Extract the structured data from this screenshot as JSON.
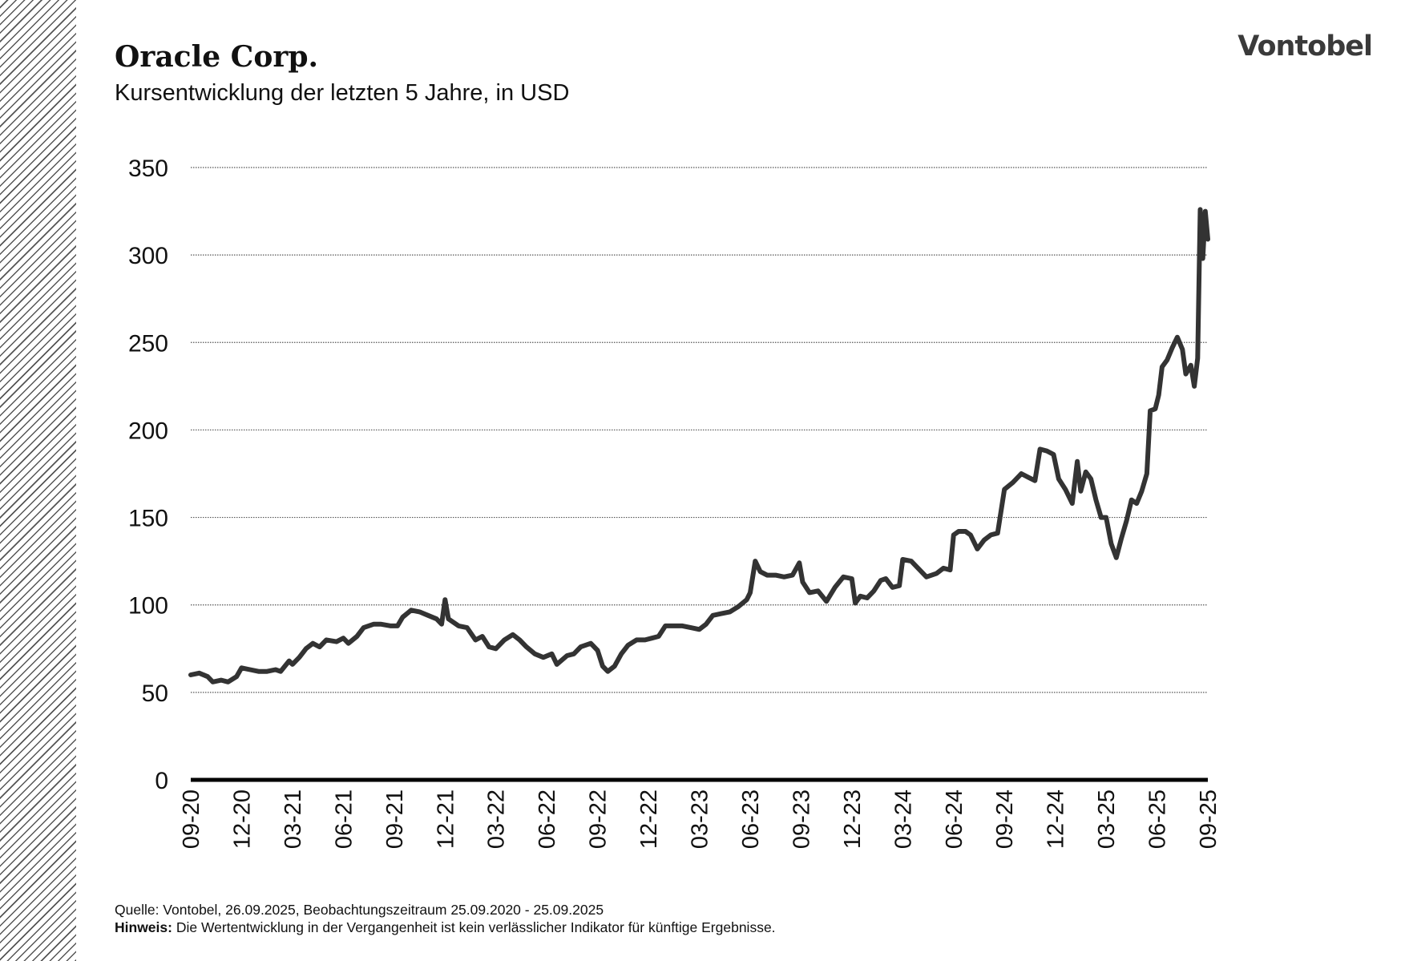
{
  "brand": "Vontobel",
  "title": "Oracle Corp.",
  "subtitle": "Kursentwicklung der letzten 5 Jahre, in USD",
  "source": "Quelle: Vontobel, 26.09.2025, Beobachtungszeitraum 25.09.2020 - 25.09.2025",
  "note_label": "Hinweis:",
  "note_text": "Die Wertentwicklung in der Vergangenheit ist kein verlässlicher Indikator für künftige Ergebnisse.",
  "colors": {
    "line": "#333333",
    "grid": "#555555",
    "axis": "#000000"
  },
  "chart_data": {
    "type": "line",
    "title": "Oracle Corp.",
    "ylabel": "USD",
    "xlabel": "",
    "ylim": [
      0,
      350
    ],
    "yticks": [
      0,
      50,
      100,
      150,
      200,
      250,
      300,
      350
    ],
    "grid": true,
    "xlim": [
      0,
      60
    ],
    "xticks": [
      {
        "x": 0,
        "label": "09-20"
      },
      {
        "x": 3,
        "label": "12-20"
      },
      {
        "x": 6,
        "label": "03-21"
      },
      {
        "x": 9,
        "label": "06-21"
      },
      {
        "x": 12,
        "label": "09-21"
      },
      {
        "x": 15,
        "label": "12-21"
      },
      {
        "x": 18,
        "label": "03-22"
      },
      {
        "x": 21,
        "label": "06-22"
      },
      {
        "x": 24,
        "label": "09-22"
      },
      {
        "x": 27,
        "label": "12-22"
      },
      {
        "x": 30,
        "label": "03-23"
      },
      {
        "x": 33,
        "label": "06-23"
      },
      {
        "x": 36,
        "label": "09-23"
      },
      {
        "x": 39,
        "label": "12-23"
      },
      {
        "x": 42,
        "label": "03-24"
      },
      {
        "x": 45,
        "label": "06-24"
      },
      {
        "x": 48,
        "label": "09-24"
      },
      {
        "x": 51,
        "label": "12-24"
      },
      {
        "x": 54,
        "label": "03-25"
      },
      {
        "x": 57,
        "label": "06-25"
      },
      {
        "x": 60,
        "label": "09-25"
      }
    ],
    "series": [
      {
        "name": "Oracle Corp.",
        "x_unit": "months since 25.09.2020",
        "points": [
          [
            0,
            60
          ],
          [
            0.5,
            61
          ],
          [
            1,
            59
          ],
          [
            1.3,
            56
          ],
          [
            1.8,
            57
          ],
          [
            2.2,
            56
          ],
          [
            2.7,
            59
          ],
          [
            3,
            64
          ],
          [
            3.5,
            63
          ],
          [
            4,
            62
          ],
          [
            4.5,
            62
          ],
          [
            5,
            63
          ],
          [
            5.3,
            62
          ],
          [
            5.8,
            68
          ],
          [
            6,
            66
          ],
          [
            6.4,
            70
          ],
          [
            6.8,
            75
          ],
          [
            7.2,
            78
          ],
          [
            7.6,
            76
          ],
          [
            8,
            80
          ],
          [
            8.6,
            79
          ],
          [
            9,
            81
          ],
          [
            9.3,
            78
          ],
          [
            9.8,
            82
          ],
          [
            10.2,
            87
          ],
          [
            10.8,
            89
          ],
          [
            11.2,
            89
          ],
          [
            11.8,
            88
          ],
          [
            12.2,
            88
          ],
          [
            12.5,
            93
          ],
          [
            13,
            97
          ],
          [
            13.5,
            96
          ],
          [
            14,
            94
          ],
          [
            14.5,
            92
          ],
          [
            14.8,
            89
          ],
          [
            15,
            103
          ],
          [
            15.2,
            92
          ],
          [
            15.8,
            88
          ],
          [
            16.3,
            87
          ],
          [
            16.8,
            80
          ],
          [
            17.2,
            82
          ],
          [
            17.6,
            76
          ],
          [
            18,
            75
          ],
          [
            18.5,
            80
          ],
          [
            19,
            83
          ],
          [
            19.4,
            80
          ],
          [
            19.8,
            76
          ],
          [
            20.3,
            72
          ],
          [
            20.8,
            70
          ],
          [
            21.3,
            72
          ],
          [
            21.6,
            66
          ],
          [
            22.2,
            71
          ],
          [
            22.6,
            72
          ],
          [
            23,
            76
          ],
          [
            23.6,
            78
          ],
          [
            24,
            74
          ],
          [
            24.3,
            65
          ],
          [
            24.6,
            62
          ],
          [
            25,
            65
          ],
          [
            25.4,
            72
          ],
          [
            25.8,
            77
          ],
          [
            26.3,
            80
          ],
          [
            26.8,
            80
          ],
          [
            27.2,
            81
          ],
          [
            27.6,
            82
          ],
          [
            28,
            88
          ],
          [
            28.5,
            88
          ],
          [
            29,
            88
          ],
          [
            29.5,
            87
          ],
          [
            30,
            86
          ],
          [
            30.4,
            89
          ],
          [
            30.8,
            94
          ],
          [
            31.3,
            95
          ],
          [
            31.8,
            96
          ],
          [
            32.3,
            99
          ],
          [
            32.8,
            103
          ],
          [
            33,
            107
          ],
          [
            33.3,
            125
          ],
          [
            33.6,
            119
          ],
          [
            34,
            117
          ],
          [
            34.5,
            117
          ],
          [
            35,
            116
          ],
          [
            35.5,
            117
          ],
          [
            35.9,
            124
          ],
          [
            36.1,
            113
          ],
          [
            36.5,
            107
          ],
          [
            37,
            108
          ],
          [
            37.5,
            102
          ],
          [
            38,
            110
          ],
          [
            38.5,
            116
          ],
          [
            39,
            115
          ],
          [
            39.2,
            101
          ],
          [
            39.5,
            105
          ],
          [
            39.9,
            104
          ],
          [
            40.3,
            108
          ],
          [
            40.7,
            114
          ],
          [
            41,
            115
          ],
          [
            41.4,
            110
          ],
          [
            41.8,
            111
          ],
          [
            42,
            126
          ],
          [
            42.5,
            125
          ],
          [
            43,
            120
          ],
          [
            43.4,
            116
          ],
          [
            44,
            118
          ],
          [
            44.4,
            121
          ],
          [
            44.8,
            120
          ],
          [
            45,
            140
          ],
          [
            45.3,
            142
          ],
          [
            45.7,
            142
          ],
          [
            46,
            140
          ],
          [
            46.4,
            132
          ],
          [
            46.8,
            137
          ],
          [
            47.2,
            140
          ],
          [
            47.6,
            141
          ],
          [
            48,
            166
          ],
          [
            48.5,
            170
          ],
          [
            49,
            175
          ],
          [
            49.4,
            173
          ],
          [
            49.8,
            171
          ],
          [
            50.1,
            189
          ],
          [
            50.5,
            188
          ],
          [
            50.9,
            186
          ],
          [
            51.2,
            172
          ],
          [
            51.6,
            166
          ],
          [
            52,
            158
          ],
          [
            52.3,
            182
          ],
          [
            52.5,
            165
          ],
          [
            52.8,
            176
          ],
          [
            53.1,
            172
          ],
          [
            53.4,
            160
          ],
          [
            53.7,
            150
          ],
          [
            54,
            150
          ],
          [
            54.3,
            135
          ],
          [
            54.6,
            127
          ],
          [
            54.9,
            138
          ],
          [
            55.2,
            148
          ],
          [
            55.5,
            160
          ],
          [
            55.8,
            158
          ],
          [
            56.1,
            165
          ],
          [
            56.4,
            175
          ],
          [
            56.6,
            211
          ],
          [
            56.9,
            212
          ],
          [
            57.1,
            220
          ],
          [
            57.3,
            236
          ],
          [
            57.6,
            240
          ],
          [
            57.9,
            247
          ],
          [
            58.2,
            253
          ],
          [
            58.5,
            246
          ],
          [
            58.7,
            232
          ],
          [
            59,
            237
          ],
          [
            59.2,
            225
          ],
          [
            59.4,
            241
          ],
          [
            59.55,
            326
          ],
          [
            59.7,
            298
          ],
          [
            59.85,
            325
          ],
          [
            60,
            309
          ]
        ]
      }
    ]
  }
}
